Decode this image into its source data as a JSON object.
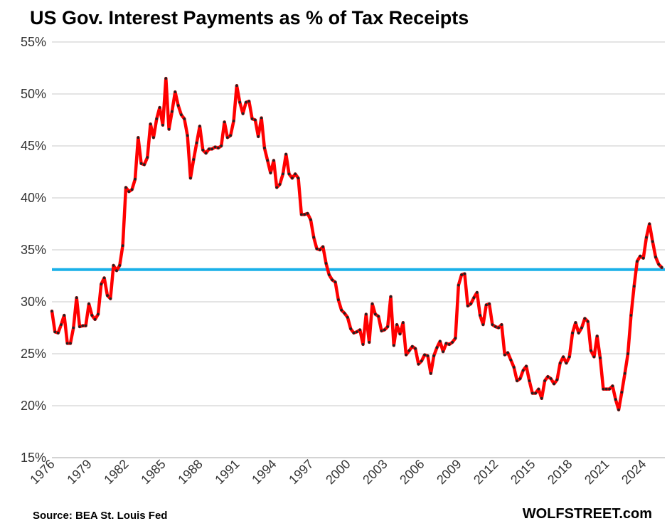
{
  "chart_data": {
    "type": "line",
    "title": "US Gov. Interest Payments as % of Tax Receipts",
    "source": "Source:  BEA St. Louis Fed",
    "brand": "WOLFSTREET.com",
    "xlabel": "",
    "ylabel": "",
    "xlim": [
      1976.0,
      2025.75
    ],
    "ylim": [
      15,
      55
    ],
    "yticks": [
      "15%",
      "20%",
      "25%",
      "30%",
      "35%",
      "40%",
      "45%",
      "50%",
      "55%"
    ],
    "ytick_values": [
      15,
      20,
      25,
      30,
      35,
      40,
      45,
      50,
      55
    ],
    "xticks": [
      "1976",
      "1979",
      "1982",
      "1985",
      "1988",
      "1991",
      "1994",
      "1997",
      "2000",
      "2003",
      "2006",
      "2009",
      "2012",
      "2015",
      "2018",
      "2021",
      "2024"
    ],
    "xtick_values": [
      1976,
      1979,
      1982,
      1985,
      1988,
      1991,
      1994,
      1997,
      2000,
      2003,
      2006,
      2009,
      2012,
      2015,
      2018,
      2021,
      2024
    ],
    "grid": "horizontal",
    "reference_line": {
      "value": 33.1,
      "color": "#1ab0e8"
    },
    "series": [
      {
        "line_color": "#ff0000",
        "marker_color": "#222222",
        "points": [
          [
            1976.0,
            29.1
          ],
          [
            1976.25,
            27.1
          ],
          [
            1976.5,
            27.0
          ],
          [
            1976.75,
            27.8
          ],
          [
            1977.0,
            28.7
          ],
          [
            1977.25,
            26.0
          ],
          [
            1977.5,
            26.0
          ],
          [
            1977.75,
            27.5
          ],
          [
            1978.0,
            30.4
          ],
          [
            1978.25,
            27.6
          ],
          [
            1978.5,
            27.7
          ],
          [
            1978.75,
            27.7
          ],
          [
            1979.0,
            29.8
          ],
          [
            1979.25,
            28.7
          ],
          [
            1979.5,
            28.3
          ],
          [
            1979.75,
            28.8
          ],
          [
            1980.0,
            31.7
          ],
          [
            1980.25,
            32.3
          ],
          [
            1980.5,
            30.6
          ],
          [
            1980.75,
            30.3
          ],
          [
            1981.0,
            33.5
          ],
          [
            1981.25,
            33.0
          ],
          [
            1981.5,
            33.5
          ],
          [
            1981.75,
            35.4
          ],
          [
            1982.0,
            41.0
          ],
          [
            1982.25,
            40.6
          ],
          [
            1982.5,
            40.8
          ],
          [
            1982.75,
            41.8
          ],
          [
            1983.0,
            45.8
          ],
          [
            1983.25,
            43.3
          ],
          [
            1983.5,
            43.2
          ],
          [
            1983.75,
            43.9
          ],
          [
            1984.0,
            47.1
          ],
          [
            1984.25,
            45.8
          ],
          [
            1984.5,
            47.6
          ],
          [
            1984.75,
            48.7
          ],
          [
            1985.0,
            47.0
          ],
          [
            1985.25,
            51.5
          ],
          [
            1985.5,
            46.6
          ],
          [
            1985.75,
            48.3
          ],
          [
            1986.0,
            50.2
          ],
          [
            1986.25,
            48.9
          ],
          [
            1986.5,
            48.0
          ],
          [
            1986.75,
            47.6
          ],
          [
            1987.0,
            46.0
          ],
          [
            1987.25,
            41.9
          ],
          [
            1987.5,
            43.7
          ],
          [
            1987.75,
            45.3
          ],
          [
            1988.0,
            46.9
          ],
          [
            1988.25,
            44.6
          ],
          [
            1988.5,
            44.3
          ],
          [
            1988.75,
            44.7
          ],
          [
            1989.0,
            44.7
          ],
          [
            1989.25,
            44.9
          ],
          [
            1989.5,
            44.8
          ],
          [
            1989.75,
            45.0
          ],
          [
            1990.0,
            47.3
          ],
          [
            1990.25,
            45.8
          ],
          [
            1990.5,
            46.0
          ],
          [
            1990.75,
            47.4
          ],
          [
            1991.0,
            50.8
          ],
          [
            1991.25,
            49.2
          ],
          [
            1991.5,
            48.1
          ],
          [
            1991.75,
            49.2
          ],
          [
            1992.0,
            49.3
          ],
          [
            1992.25,
            47.6
          ],
          [
            1992.5,
            47.5
          ],
          [
            1992.75,
            45.9
          ],
          [
            1993.0,
            47.7
          ],
          [
            1993.25,
            44.8
          ],
          [
            1993.5,
            43.6
          ],
          [
            1993.75,
            42.4
          ],
          [
            1994.0,
            43.6
          ],
          [
            1994.25,
            41.0
          ],
          [
            1994.5,
            41.3
          ],
          [
            1994.75,
            42.3
          ],
          [
            1995.0,
            44.2
          ],
          [
            1995.25,
            42.3
          ],
          [
            1995.5,
            41.9
          ],
          [
            1995.75,
            42.3
          ],
          [
            1996.0,
            41.9
          ],
          [
            1996.25,
            38.4
          ],
          [
            1996.5,
            38.4
          ],
          [
            1996.75,
            38.5
          ],
          [
            1997.0,
            37.9
          ],
          [
            1997.25,
            36.2
          ],
          [
            1997.5,
            35.1
          ],
          [
            1997.75,
            35.0
          ],
          [
            1998.0,
            35.3
          ],
          [
            1998.25,
            33.7
          ],
          [
            1998.5,
            32.6
          ],
          [
            1998.75,
            32.1
          ],
          [
            1999.0,
            31.9
          ],
          [
            1999.25,
            30.2
          ],
          [
            1999.5,
            29.2
          ],
          [
            1999.75,
            28.9
          ],
          [
            2000.0,
            28.5
          ],
          [
            2000.25,
            27.4
          ],
          [
            2000.5,
            27.0
          ],
          [
            2000.75,
            27.1
          ],
          [
            2001.0,
            27.3
          ],
          [
            2001.25,
            25.9
          ],
          [
            2001.5,
            28.8
          ],
          [
            2001.75,
            26.1
          ],
          [
            2002.0,
            29.8
          ],
          [
            2002.25,
            28.8
          ],
          [
            2002.5,
            28.6
          ],
          [
            2002.75,
            27.2
          ],
          [
            2003.0,
            27.3
          ],
          [
            2003.25,
            27.6
          ],
          [
            2003.5,
            30.5
          ],
          [
            2003.75,
            25.8
          ],
          [
            2004.0,
            27.8
          ],
          [
            2004.25,
            26.9
          ],
          [
            2004.5,
            28.0
          ],
          [
            2004.75,
            24.9
          ],
          [
            2005.0,
            25.3
          ],
          [
            2005.25,
            25.7
          ],
          [
            2005.5,
            25.5
          ],
          [
            2005.75,
            24.0
          ],
          [
            2006.0,
            24.3
          ],
          [
            2006.25,
            24.9
          ],
          [
            2006.5,
            24.8
          ],
          [
            2006.75,
            23.1
          ],
          [
            2007.0,
            24.8
          ],
          [
            2007.25,
            25.6
          ],
          [
            2007.5,
            26.2
          ],
          [
            2007.75,
            25.2
          ],
          [
            2008.0,
            26.0
          ],
          [
            2008.25,
            25.9
          ],
          [
            2008.5,
            26.1
          ],
          [
            2008.75,
            26.5
          ],
          [
            2009.0,
            31.6
          ],
          [
            2009.25,
            32.6
          ],
          [
            2009.5,
            32.7
          ],
          [
            2009.75,
            29.6
          ],
          [
            2010.0,
            29.8
          ],
          [
            2010.25,
            30.4
          ],
          [
            2010.5,
            30.9
          ],
          [
            2010.75,
            28.7
          ],
          [
            2011.0,
            27.8
          ],
          [
            2011.25,
            29.7
          ],
          [
            2011.5,
            29.8
          ],
          [
            2011.75,
            27.8
          ],
          [
            2012.0,
            27.6
          ],
          [
            2012.25,
            27.5
          ],
          [
            2012.5,
            27.8
          ],
          [
            2012.75,
            24.9
          ],
          [
            2013.0,
            25.1
          ],
          [
            2013.25,
            24.4
          ],
          [
            2013.5,
            23.7
          ],
          [
            2013.75,
            22.4
          ],
          [
            2014.0,
            22.6
          ],
          [
            2014.25,
            23.4
          ],
          [
            2014.5,
            23.8
          ],
          [
            2014.75,
            22.4
          ],
          [
            2015.0,
            21.2
          ],
          [
            2015.25,
            21.2
          ],
          [
            2015.5,
            21.6
          ],
          [
            2015.75,
            20.7
          ],
          [
            2016.0,
            22.4
          ],
          [
            2016.25,
            22.8
          ],
          [
            2016.5,
            22.6
          ],
          [
            2016.75,
            22.1
          ],
          [
            2017.0,
            22.5
          ],
          [
            2017.25,
            24.1
          ],
          [
            2017.5,
            24.7
          ],
          [
            2017.75,
            24.1
          ],
          [
            2018.0,
            24.7
          ],
          [
            2018.25,
            27.0
          ],
          [
            2018.5,
            28.0
          ],
          [
            2018.75,
            27.0
          ],
          [
            2019.0,
            27.5
          ],
          [
            2019.25,
            28.4
          ],
          [
            2019.5,
            28.1
          ],
          [
            2019.75,
            25.3
          ],
          [
            2020.0,
            24.7
          ],
          [
            2020.25,
            26.7
          ],
          [
            2020.5,
            24.6
          ],
          [
            2020.75,
            21.6
          ],
          [
            2021.0,
            21.6
          ],
          [
            2021.25,
            21.6
          ],
          [
            2021.5,
            21.9
          ],
          [
            2021.75,
            20.6
          ],
          [
            2022.0,
            19.6
          ],
          [
            2022.25,
            21.3
          ],
          [
            2022.5,
            23.1
          ],
          [
            2022.75,
            25.0
          ],
          [
            2023.0,
            28.7
          ],
          [
            2023.25,
            31.5
          ],
          [
            2023.5,
            33.9
          ],
          [
            2023.75,
            34.4
          ],
          [
            2024.0,
            34.2
          ],
          [
            2024.25,
            36.2
          ],
          [
            2024.5,
            37.5
          ],
          [
            2024.75,
            35.8
          ],
          [
            2025.0,
            34.3
          ],
          [
            2025.25,
            33.6
          ],
          [
            2025.5,
            33.3
          ]
        ]
      }
    ]
  }
}
